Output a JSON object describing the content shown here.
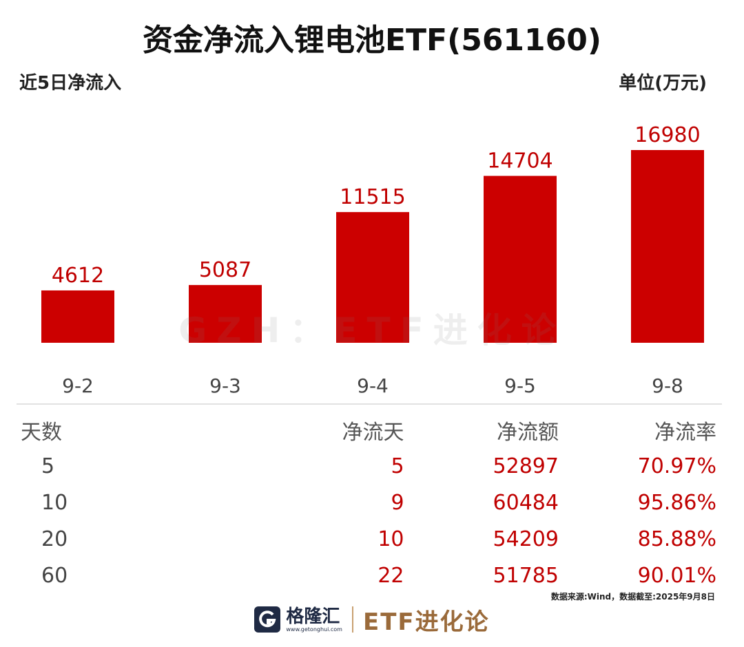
{
  "header": {
    "title": "资金净流入锂电池ETF(561160)",
    "subtitle": "近5日净流入",
    "unit": "单位(万元)"
  },
  "watermark": "GZH：ETF进化论",
  "chart_data": {
    "type": "bar",
    "categories": [
      "9-2",
      "9-3",
      "9-4",
      "9-5",
      "9-8"
    ],
    "values": [
      4612,
      5087,
      11515,
      14704,
      16980
    ],
    "title": "资金净流入锂电池ETF(561160)",
    "subtitle": "近5日净流入",
    "ylabel": "单位(万元)",
    "ylim": [
      0,
      16980
    ],
    "grid": false,
    "bar_color": "#cc0000",
    "label_color": "#c00000"
  },
  "table": {
    "headers": [
      "天数",
      "净流天",
      "净流额",
      "净流率"
    ],
    "rows": [
      [
        "5",
        "5",
        "52897",
        "70.97%"
      ],
      [
        "10",
        "9",
        "60484",
        "95.86%"
      ],
      [
        "20",
        "10",
        "54209",
        "85.88%"
      ],
      [
        "60",
        "22",
        "51785",
        "90.01%"
      ]
    ]
  },
  "source": "数据来源:Wind，数据截至:2025年9月8日",
  "footer": {
    "logo_icon": "gelonghui-g-icon",
    "logo_name": "格隆汇",
    "logo_url": "www.getonghui.com",
    "brand": "ETF进化论"
  }
}
